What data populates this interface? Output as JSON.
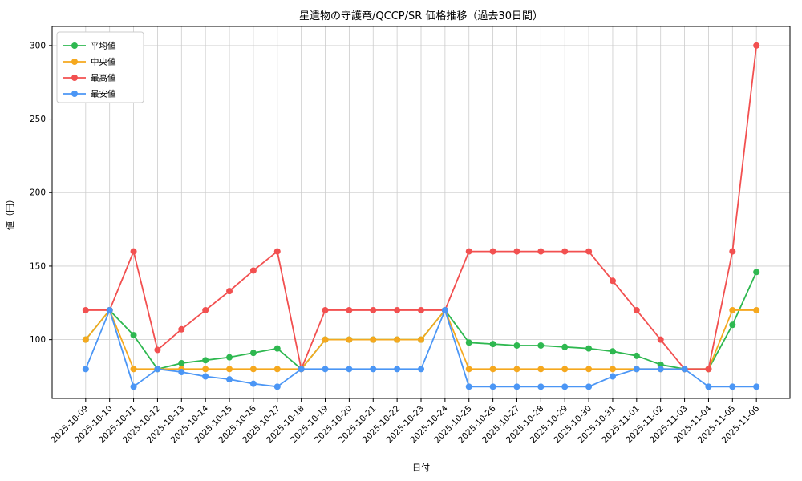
{
  "chart_data": {
    "type": "line",
    "title": "星遺物の守護竜/QCCP/SR 価格推移（過去30日間）",
    "xlabel": "日付",
    "ylabel": "値（円）",
    "grid": true,
    "legend_position": "upper left",
    "yticks": [
      100,
      150,
      200,
      250,
      300
    ],
    "ylim": [
      60,
      313
    ],
    "categories": [
      "2025-10-09",
      "2025-10-10",
      "2025-10-11",
      "2025-10-12",
      "2025-10-13",
      "2025-10-14",
      "2025-10-15",
      "2025-10-16",
      "2025-10-17",
      "2025-10-18",
      "2025-10-19",
      "2025-10-20",
      "2025-10-21",
      "2025-10-22",
      "2025-10-23",
      "2025-10-24",
      "2025-10-25",
      "2025-10-26",
      "2025-10-27",
      "2025-10-28",
      "2025-10-29",
      "2025-10-30",
      "2025-10-31",
      "2025-11-01",
      "2025-11-02",
      "2025-11-03",
      "2025-11-04",
      "2025-11-05",
      "2025-11-06"
    ],
    "series": [
      {
        "key": "average",
        "name": "平均値",
        "color": "#2eb850",
        "values": [
          100,
          120,
          103,
          80,
          84,
          86,
          88,
          91,
          94,
          80,
          100,
          100,
          100,
          100,
          100,
          120,
          98,
          97,
          96,
          96,
          95,
          94,
          92,
          89,
          83,
          80,
          80,
          110,
          146
        ]
      },
      {
        "key": "median",
        "name": "中央値",
        "color": "#f5a81e",
        "values": [
          100,
          120,
          80,
          80,
          80,
          80,
          80,
          80,
          80,
          80,
          100,
          100,
          100,
          100,
          100,
          120,
          80,
          80,
          80,
          80,
          80,
          80,
          80,
          80,
          80,
          80,
          80,
          120,
          120
        ]
      },
      {
        "key": "max",
        "name": "最高値",
        "color": "#f25050",
        "values": [
          120,
          120,
          160,
          93,
          107,
          120,
          133,
          147,
          160,
          80,
          120,
          120,
          120,
          120,
          120,
          120,
          160,
          160,
          160,
          160,
          160,
          160,
          140,
          120,
          100,
          80,
          80,
          160,
          300
        ]
      },
      {
        "key": "min",
        "name": "最安値",
        "color": "#4b96f5",
        "values": [
          80,
          120,
          68,
          80,
          78,
          75,
          73,
          70,
          68,
          80,
          80,
          80,
          80,
          80,
          80,
          120,
          68,
          68,
          68,
          68,
          68,
          68,
          75,
          80,
          80,
          80,
          68,
          68,
          68
        ]
      }
    ]
  }
}
